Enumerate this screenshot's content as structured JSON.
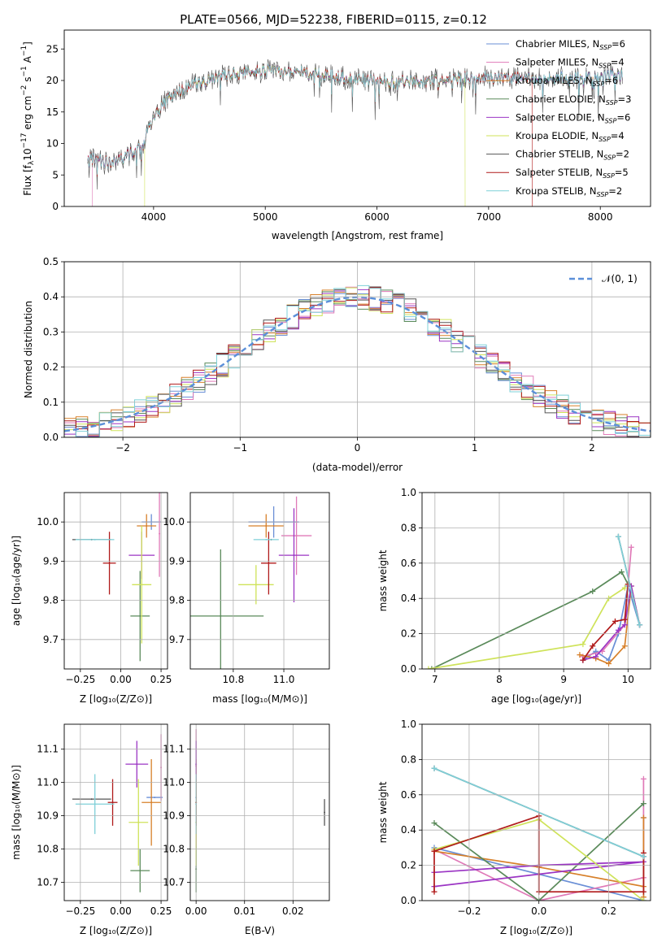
{
  "figure_title": "PLATE=0566, MJD=52238, FIBERID=0115, z=0.12",
  "colors": {
    "Chabrier MILES": "#6a8fd6",
    "Salpeter MILES": "#e07ab8",
    "Kroupa MILES": "#d7802a",
    "Chabrier ELODIE": "#5a8a5a",
    "Salpeter ELODIE": "#9b35c4",
    "Kroupa ELODIE": "#cfe35a",
    "Chabrier STELIB": "#555555",
    "Salpeter STELIB": "#b01a1a",
    "Kroupa STELIB": "#7fd0d8"
  },
  "chart_data": [
    {
      "id": "spectrum",
      "type": "line",
      "title": "PLATE=0566, MJD=52238, FIBERID=0115, z=0.12",
      "xlabel": "wavelength [Angstrom, rest frame]",
      "ylabel_main": "Flux [f",
      "ylabel_sub": "λ",
      "ylabel_mid": "10",
      "ylabel_sup1": "−17",
      "ylabel_tail": " erg cm",
      "ylabel_sup2": "−2",
      "ylabel_tail2": " s",
      "ylabel_sup3": "−1",
      "ylabel_tail3": " A",
      "ylabel_sup4": "−1",
      "ylabel_end": "]",
      "xlim": [
        3200,
        8450
      ],
      "ylim": [
        0,
        28
      ],
      "xticks": [
        4000,
        5000,
        6000,
        7000,
        8000
      ],
      "yticks": [
        0,
        5,
        10,
        15,
        20,
        25
      ],
      "continuum": [
        [
          3410,
          7.8
        ],
        [
          3500,
          7.2
        ],
        [
          3600,
          7.0
        ],
        [
          3700,
          7.5
        ],
        [
          3800,
          8.5
        ],
        [
          3900,
          9.5
        ],
        [
          3960,
          12.5
        ],
        [
          4050,
          15.5
        ],
        [
          4150,
          17.5
        ],
        [
          4300,
          19.0
        ],
        [
          4500,
          20.0
        ],
        [
          4700,
          21.0
        ],
        [
          4900,
          21.5
        ],
        [
          5100,
          21.5
        ],
        [
          5300,
          21.3
        ],
        [
          5500,
          21.0
        ],
        [
          5700,
          20.5
        ],
        [
          5900,
          20.0
        ],
        [
          6100,
          19.8
        ],
        [
          6300,
          19.8
        ],
        [
          6500,
          20.0
        ],
        [
          6700,
          20.3
        ],
        [
          6900,
          20.5
        ],
        [
          7100,
          20.5
        ],
        [
          7300,
          20.3
        ],
        [
          7500,
          20.2
        ],
        [
          7700,
          20.4
        ],
        [
          7900,
          20.6
        ],
        [
          8100,
          20.8
        ],
        [
          8200,
          21.0
        ]
      ],
      "legend": [
        {
          "label": "Chabrier MILES, N",
          "sub": "SSP",
          "value": "=6"
        },
        {
          "label": "Salpeter MILES, N",
          "sub": "SSP",
          "value": "=4"
        },
        {
          "label": "Kroupa MILES, N",
          "sub": "SSP",
          "value": "=6"
        },
        {
          "label": "Chabrier ELODIE, N",
          "sub": "SSP",
          "value": "=3"
        },
        {
          "label": "Salpeter ELODIE, N",
          "sub": "SSP",
          "value": "=6"
        },
        {
          "label": "Kroupa ELODIE, N",
          "sub": "SSP",
          "value": "=4"
        },
        {
          "label": "Chabrier STELIB, N",
          "sub": "SSP",
          "value": "=2"
        },
        {
          "label": "Salpeter STELIB, N",
          "sub": "SSP",
          "value": "=5"
        },
        {
          "label": "Kroupa STELIB, N",
          "sub": "SSP",
          "value": "=2"
        }
      ],
      "drops": [
        {
          "series": "Salpeter MILES",
          "x": 3450
        },
        {
          "series": "Kroupa ELODIE",
          "x": 3920
        },
        {
          "series": "Kroupa ELODIE",
          "x": 6790
        },
        {
          "series": "Salpeter STELIB",
          "x": 7390
        }
      ]
    },
    {
      "id": "residuals",
      "type": "histogram",
      "xlabel": "(data-model)/error",
      "ylabel": "Normed distribution",
      "xlim": [
        -2.5,
        2.5
      ],
      "ylim": [
        0,
        0.5
      ],
      "xticks": [
        -2,
        -1,
        0,
        1,
        2
      ],
      "xtick_labels": [
        "−2",
        "−1",
        "0",
        "1",
        "2"
      ],
      "yticks": [
        0.0,
        0.1,
        0.2,
        0.3,
        0.4,
        0.5
      ],
      "ytick_labels": [
        "0.0",
        "0.1",
        "0.2",
        "0.3",
        "0.4",
        "0.5"
      ],
      "legend_label": "𝒩(0, 1)",
      "gaussian": {
        "mean": 0,
        "sigma": 1
      },
      "bin_width": 0.1
    },
    {
      "id": "age-vs-Z",
      "type": "scatter",
      "xlabel": "Z [log₁₀(Z/Z⊙)]",
      "ylabel": "age  [log₁₀(age/yr)]",
      "xlim": [
        -0.35,
        0.29
      ],
      "ylim": [
        9.625,
        10.075
      ],
      "xticks": [
        -0.25,
        0.0,
        0.25
      ],
      "xtick_labels": [
        "−0.25",
        "0.00",
        "0.25"
      ],
      "yticks": [
        9.7,
        9.8,
        9.9,
        10.0
      ],
      "ytick_labels": [
        "9.7",
        "9.8",
        "9.9",
        "10.0"
      ],
      "points": [
        {
          "series": "Chabrier MILES",
          "x": 0.19,
          "y": 10.0,
          "xerr": 0.06,
          "yerr": 0.02
        },
        {
          "series": "Salpeter MILES",
          "x": 0.24,
          "y": 9.97,
          "xerr": 0.0,
          "yerr": 0.11
        },
        {
          "series": "Kroupa MILES",
          "x": 0.16,
          "y": 9.99,
          "xerr": 0.06,
          "yerr": 0.03
        },
        {
          "series": "Chabrier ELODIE",
          "x": 0.12,
          "y": 9.76,
          "xerr": 0.06,
          "yerr": 0.115
        },
        {
          "series": "Salpeter ELODIE",
          "x": 0.13,
          "y": 9.915,
          "xerr": 0.08,
          "yerr": 0.06
        },
        {
          "series": "Kroupa ELODIE",
          "x": 0.13,
          "y": 9.84,
          "xerr": 0.06,
          "yerr": 0.15
        },
        {
          "series": "Chabrier STELIB",
          "x": -0.18,
          "y": 9.955,
          "xerr": 0.12,
          "yerr": 0.0
        },
        {
          "series": "Salpeter STELIB",
          "x": -0.07,
          "y": 9.895,
          "xerr": 0.04,
          "yerr": 0.08
        },
        {
          "series": "Kroupa STELIB",
          "x": -0.16,
          "y": 9.955,
          "xerr": 0.12,
          "yerr": 0.0
        }
      ]
    },
    {
      "id": "age-vs-mass",
      "type": "scatter",
      "xlabel": "mass [log₁₀(M/M⊙)]",
      "ylabel": "",
      "xlim": [
        10.63,
        11.18
      ],
      "ylim": [
        9.625,
        10.075
      ],
      "xticks": [
        10.8,
        11.0
      ],
      "xtick_labels": [
        "10.8",
        "11.0"
      ],
      "yticks": [
        9.7,
        9.8,
        9.9,
        10.0
      ],
      "ytick_labels": [
        "9.7",
        "9.8",
        "9.9",
        "10.0"
      ],
      "points": [
        {
          "series": "Chabrier MILES",
          "x": 10.96,
          "y": 10.0,
          "xerr": 0.1,
          "yerr": 0.04
        },
        {
          "series": "Salpeter MILES",
          "x": 11.05,
          "y": 9.965,
          "xerr": 0.06,
          "yerr": 0.1
        },
        {
          "series": "Kroupa MILES",
          "x": 10.93,
          "y": 9.99,
          "xerr": 0.07,
          "yerr": 0.03
        },
        {
          "series": "Chabrier ELODIE",
          "x": 10.75,
          "y": 9.76,
          "xerr": 0.17,
          "yerr": 0.17
        },
        {
          "series": "Salpeter ELODIE",
          "x": 11.04,
          "y": 9.915,
          "xerr": 0.06,
          "yerr": 0.12
        },
        {
          "series": "Kroupa ELODIE",
          "x": 10.89,
          "y": 9.84,
          "xerr": 0.07,
          "yerr": 0.05
        },
        {
          "series": "Chabrier STELIB",
          "x": 10.95,
          "y": 9.955,
          "xerr": 0.0,
          "yerr": 0.0
        },
        {
          "series": "Salpeter STELIB",
          "x": 10.94,
          "y": 9.895,
          "xerr": 0.03,
          "yerr": 0.08
        },
        {
          "series": "Kroupa STELIB",
          "x": 10.93,
          "y": 9.955,
          "xerr": 0.05,
          "yerr": 0.0
        }
      ]
    },
    {
      "id": "mass-weight-vs-age",
      "type": "line",
      "xlabel": "age  [log₁₀(age/yr)]",
      "ylabel": "mass weight",
      "xlim": [
        6.8,
        10.35
      ],
      "ylim": [
        0,
        1
      ],
      "xticks": [
        7,
        8,
        9,
        10
      ],
      "xtick_labels": [
        "7",
        "8",
        "9",
        "10"
      ],
      "yticks": [
        0.0,
        0.2,
        0.4,
        0.6,
        0.8,
        1.0
      ],
      "ytick_labels": [
        "0.0",
        "0.2",
        "0.4",
        "0.6",
        "0.8",
        "1.0"
      ],
      "series": [
        {
          "name": "Chabrier MILES",
          "x": [
            9.3,
            9.5,
            9.7,
            9.85,
            10.0,
            10.18
          ],
          "y": [
            0.05,
            0.1,
            0.05,
            0.2,
            0.47,
            0.25
          ]
        },
        {
          "name": "Salpeter MILES",
          "x": [
            9.3,
            9.6,
            9.95,
            10.05
          ],
          "y": [
            0.07,
            0.1,
            0.25,
            0.69
          ]
        },
        {
          "name": "Kroupa MILES",
          "x": [
            9.25,
            9.5,
            9.7,
            9.95,
            10.05,
            10.18
          ],
          "y": [
            0.08,
            0.06,
            0.03,
            0.13,
            0.47,
            0.25
          ]
        },
        {
          "name": "Chabrier ELODIE",
          "x": [
            6.95,
            9.45,
            9.9,
            10.0
          ],
          "y": [
            0.0,
            0.44,
            0.55,
            0.48
          ]
        },
        {
          "name": "Salpeter ELODIE",
          "x": [
            9.3,
            9.5,
            9.85,
            9.95,
            10.05,
            10.18
          ],
          "y": [
            0.05,
            0.07,
            0.22,
            0.25,
            0.47,
            0.25
          ]
        },
        {
          "name": "Kroupa ELODIE",
          "x": [
            6.9,
            9.3,
            9.7,
            9.95
          ],
          "y": [
            0.0,
            0.14,
            0.4,
            0.46
          ]
        },
        {
          "name": "Chabrier STELIB",
          "x": [
            9.85,
            10.18
          ],
          "y": [
            0.75,
            0.25
          ]
        },
        {
          "name": "Salpeter STELIB",
          "x": [
            9.3,
            9.45,
            9.8,
            9.95,
            10.0
          ],
          "y": [
            0.05,
            0.13,
            0.27,
            0.28,
            0.48
          ]
        },
        {
          "name": "Kroupa STELIB",
          "x": [
            9.85,
            10.18
          ],
          "y": [
            0.75,
            0.25
          ]
        }
      ]
    },
    {
      "id": "mass-vs-Z",
      "type": "scatter",
      "xlabel": "Z [log₁₀(Z/Z⊙)]",
      "ylabel": "mass [log₁₀(M/M⊙)]",
      "xlim": [
        -0.35,
        0.29
      ],
      "ylim": [
        10.645,
        11.175
      ],
      "xticks": [
        -0.25,
        0.0,
        0.25
      ],
      "xtick_labels": [
        "−0.25",
        "0.00",
        "0.25"
      ],
      "yticks": [
        10.7,
        10.8,
        10.9,
        11.0,
        11.1
      ],
      "ytick_labels": [
        "10.7",
        "10.8",
        "10.9",
        "11.0",
        "11.1"
      ],
      "points": [
        {
          "series": "Chabrier MILES",
          "x": 0.21,
          "y": 10.955,
          "xerr": 0.05,
          "yerr": 0.0
        },
        {
          "series": "Salpeter MILES",
          "x": 0.25,
          "y": 11.045,
          "xerr": 0.0,
          "yerr": 0.1
        },
        {
          "series": "Kroupa MILES",
          "x": 0.19,
          "y": 10.94,
          "xerr": 0.06,
          "yerr": 0.13
        },
        {
          "series": "Chabrier ELODIE",
          "x": 0.12,
          "y": 10.735,
          "xerr": 0.06,
          "yerr": 0.065
        },
        {
          "series": "Salpeter ELODIE",
          "x": 0.1,
          "y": 11.055,
          "xerr": 0.07,
          "yerr": 0.07
        },
        {
          "series": "Kroupa ELODIE",
          "x": 0.11,
          "y": 10.88,
          "xerr": 0.06,
          "yerr": 0.13
        },
        {
          "series": "Chabrier STELIB",
          "x": -0.18,
          "y": 10.95,
          "xerr": 0.12,
          "yerr": 0.0
        },
        {
          "series": "Salpeter STELIB",
          "x": -0.05,
          "y": 10.94,
          "xerr": 0.03,
          "yerr": 0.07
        },
        {
          "series": "Kroupa STELIB",
          "x": -0.16,
          "y": 10.935,
          "xerr": 0.12,
          "yerr": 0.09
        }
      ]
    },
    {
      "id": "mass-vs-ebv",
      "type": "scatter",
      "xlabel": "E(B-V)",
      "ylabel": "",
      "xlim": [
        -0.0012,
        0.0275
      ],
      "ylim": [
        10.645,
        11.175
      ],
      "xticks": [
        0.0,
        0.01,
        0.02
      ],
      "xtick_labels": [
        "0.00",
        "0.01",
        "0.02"
      ],
      "yticks": [
        10.7,
        10.8,
        10.9,
        11.0,
        11.1
      ],
      "ytick_labels": [
        "10.7",
        "10.8",
        "10.9",
        "11.0",
        "11.1"
      ],
      "points": [
        {
          "series": "Chabrier MILES",
          "x": 0.0,
          "y": 10.955,
          "xerr": 0.0,
          "yerr": 0.03
        },
        {
          "series": "Salpeter MILES",
          "x": 0.0,
          "y": 11.05,
          "xerr": 0.0,
          "yerr": 0.11
        },
        {
          "series": "Kroupa MILES",
          "x": 0.0,
          "y": 10.94,
          "xerr": 0.0,
          "yerr": 0.13
        },
        {
          "series": "Chabrier ELODIE",
          "x": 0.0,
          "y": 10.74,
          "xerr": 0.0,
          "yerr": 0.07
        },
        {
          "series": "Salpeter ELODIE",
          "x": 0.0,
          "y": 11.055,
          "xerr": 0.0,
          "yerr": 0.07
        },
        {
          "series": "Kroupa ELODIE",
          "x": 0.0,
          "y": 10.88,
          "xerr": 0.0,
          "yerr": 0.13
        },
        {
          "series": "Chabrier STELIB",
          "x": 0.0265,
          "y": 10.91,
          "xerr": 0.0,
          "yerr": 0.04
        },
        {
          "series": "Salpeter STELIB",
          "x": 0.0,
          "y": 10.94,
          "xerr": 0.0,
          "yerr": 0.07
        },
        {
          "series": "Kroupa STELIB",
          "x": 0.0,
          "y": 10.935,
          "xerr": 0.0,
          "yerr": 0.09
        }
      ]
    },
    {
      "id": "mass-weight-vs-Z",
      "type": "line",
      "xlabel": "Z [log₁₀(Z/Z⊙)]",
      "ylabel": "mass weight",
      "xlim": [
        -0.335,
        0.32
      ],
      "ylim": [
        0,
        1
      ],
      "xticks": [
        -0.2,
        0.0,
        0.2
      ],
      "xtick_labels": [
        "−0.2",
        "0.0",
        "0.2"
      ],
      "yticks": [
        0.0,
        0.2,
        0.4,
        0.6,
        0.8,
        1.0
      ],
      "ytick_labels": [
        "0.0",
        "0.2",
        "0.4",
        "0.6",
        "0.8",
        "1.0"
      ],
      "series": [
        {
          "name": "Chabrier MILES",
          "x": [
            -0.3,
            0.3,
            0.3,
            0.3
          ],
          "y": [
            0.3,
            0.0,
            0.47,
            0.25
          ]
        },
        {
          "name": "Salpeter MILES",
          "x": [
            -0.3,
            0.0,
            0.3,
            0.3
          ],
          "y": [
            0.29,
            0.0,
            0.13,
            0.69
          ]
        },
        {
          "name": "Kroupa MILES",
          "x": [
            -0.3,
            0.0,
            0.3,
            0.3,
            0.3
          ],
          "y": [
            0.28,
            0.19,
            0.08,
            0.47,
            0.02
          ]
        },
        {
          "name": "Chabrier ELODIE",
          "x": [
            -0.3,
            0.0,
            0.3
          ],
          "y": [
            0.44,
            0.0,
            0.55
          ]
        },
        {
          "name": "Salpeter ELODIE",
          "x": [
            -0.3,
            0.0,
            0.3,
            -0.3
          ],
          "y": [
            0.16,
            0.2,
            0.22,
            0.08
          ]
        },
        {
          "name": "Kroupa ELODIE",
          "x": [
            -0.3,
            0.0,
            0.3
          ],
          "y": [
            0.29,
            0.46,
            0.0
          ]
        },
        {
          "name": "Chabrier STELIB",
          "x": [
            -0.3,
            0.3
          ],
          "y": [
            0.75,
            0.25
          ]
        },
        {
          "name": "Salpeter STELIB",
          "x": [
            -0.3,
            -0.3,
            0.0,
            0.0,
            0.3,
            0.3
          ],
          "y": [
            0.05,
            0.28,
            0.48,
            0.05,
            0.05,
            0.27
          ]
        },
        {
          "name": "Kroupa STELIB",
          "x": [
            -0.3,
            0.3
          ],
          "y": [
            0.75,
            0.25
          ]
        }
      ]
    }
  ]
}
